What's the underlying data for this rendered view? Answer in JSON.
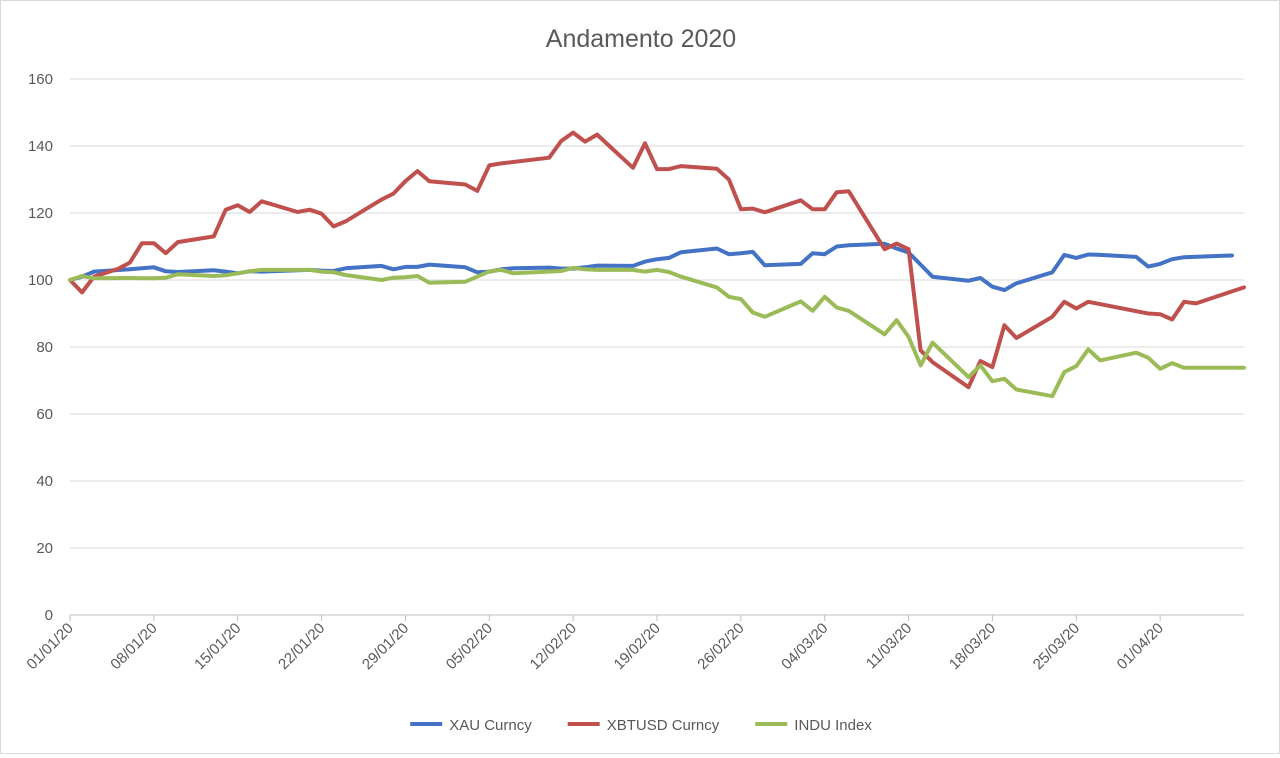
{
  "chart_data": {
    "type": "line",
    "title": "Andamento 2020",
    "xlabel": "",
    "ylabel": "",
    "ylim": [
      0,
      160
    ],
    "yticks": [
      0,
      20,
      40,
      60,
      80,
      100,
      120,
      140,
      160
    ],
    "xlim": [
      "01/01/20",
      "08/04/20"
    ],
    "xticks": [
      "01/01/20",
      "08/01/20",
      "15/01/20",
      "22/01/20",
      "29/01/20",
      "05/02/20",
      "12/02/20",
      "19/02/20",
      "26/02/20",
      "04/03/20",
      "11/03/20",
      "18/03/20",
      "25/03/20",
      "01/04/20"
    ],
    "grid": "horizontal",
    "legend": "bottom",
    "series": [
      {
        "name": "XAU Curncy",
        "color": "#4472c4",
        "points": [
          [
            "01/01/20",
            100
          ],
          [
            "02/01/20",
            101
          ],
          [
            "03/01/20",
            102.5
          ],
          [
            "06/01/20",
            103.2
          ],
          [
            "07/01/20",
            103.5
          ],
          [
            "08/01/20",
            103.8
          ],
          [
            "09/01/20",
            102.6
          ],
          [
            "10/01/20",
            102.4
          ],
          [
            "13/01/20",
            102.9
          ],
          [
            "14/01/20",
            102.5
          ],
          [
            "15/01/20",
            102.0
          ],
          [
            "16/01/20",
            102.6
          ],
          [
            "17/01/20",
            102.5
          ],
          [
            "20/01/20",
            102.9
          ],
          [
            "21/01/20",
            103.0
          ],
          [
            "22/01/20",
            102.8
          ],
          [
            "23/01/20",
            102.7
          ],
          [
            "24/01/20",
            103.5
          ],
          [
            "27/01/20",
            104.2
          ],
          [
            "28/01/20",
            103.2
          ],
          [
            "29/01/20",
            103.9
          ],
          [
            "30/01/20",
            103.9
          ],
          [
            "31/01/20",
            104.6
          ],
          [
            "03/02/20",
            103.8
          ],
          [
            "04/02/20",
            102.3
          ],
          [
            "05/02/20",
            102.5
          ],
          [
            "06/02/20",
            103.2
          ],
          [
            "07/02/20",
            103.5
          ],
          [
            "10/02/20",
            103.7
          ],
          [
            "11/02/20",
            103.4
          ],
          [
            "12/02/20",
            103.4
          ],
          [
            "13/02/20",
            103.8
          ],
          [
            "14/02/20",
            104.3
          ],
          [
            "17/02/20",
            104.2
          ],
          [
            "18/02/20",
            105.5
          ],
          [
            "19/02/20",
            106.2
          ],
          [
            "20/02/20",
            106.6
          ],
          [
            "21/02/20",
            108.3
          ],
          [
            "24/02/20",
            109.4
          ],
          [
            "25/02/20",
            107.7
          ],
          [
            "26/02/20",
            108.0
          ],
          [
            "27/02/20",
            108.4
          ],
          [
            "28/02/20",
            104.4
          ],
          [
            "02/03/20",
            104.8
          ],
          [
            "03/03/20",
            108.0
          ],
          [
            "04/03/20",
            107.7
          ],
          [
            "05/03/20",
            110.0
          ],
          [
            "06/03/20",
            110.4
          ],
          [
            "09/03/20",
            110.8
          ],
          [
            "10/03/20",
            109.4
          ],
          [
            "11/03/20",
            108.2
          ],
          [
            "12/03/20",
            104.6
          ],
          [
            "13/03/20",
            101.0
          ],
          [
            "16/03/20",
            99.8
          ],
          [
            "17/03/20",
            100.6
          ],
          [
            "18/03/20",
            98.0
          ],
          [
            "19/03/20",
            97.0
          ],
          [
            "20/03/20",
            99.0
          ],
          [
            "23/03/20",
            102.3
          ],
          [
            "24/03/20",
            107.5
          ],
          [
            "25/03/20",
            106.6
          ],
          [
            "26/03/20",
            107.6
          ],
          [
            "27/03/20",
            107.5
          ],
          [
            "30/03/20",
            106.9
          ],
          [
            "31/03/20",
            104.0
          ],
          [
            "01/04/20",
            104.8
          ],
          [
            "02/04/20",
            106.2
          ],
          [
            "03/04/20",
            106.8
          ],
          [
            "06/04/20",
            107.2
          ],
          [
            "07/04/20",
            107.3
          ]
        ]
      },
      {
        "name": "XBTUSD Curncy",
        "color": "#c0504d",
        "points": [
          [
            "01/01/20",
            100
          ],
          [
            "02/01/20",
            96.3
          ],
          [
            "03/01/20",
            101
          ],
          [
            "05/01/20",
            103.3
          ],
          [
            "06/01/20",
            105.2
          ],
          [
            "07/01/20",
            111.0
          ],
          [
            "08/01/20",
            111.0
          ],
          [
            "09/01/20",
            108.0
          ],
          [
            "10/01/20",
            111.3
          ],
          [
            "13/01/20",
            113.0
          ],
          [
            "14/01/20",
            121.0
          ],
          [
            "15/01/20",
            122.3
          ],
          [
            "16/01/20",
            120.3
          ],
          [
            "17/01/20",
            123.5
          ],
          [
            "20/01/20",
            120.3
          ],
          [
            "21/01/20",
            121.0
          ],
          [
            "22/01/20",
            119.8
          ],
          [
            "23/01/20",
            116.0
          ],
          [
            "24/01/20",
            117.5
          ],
          [
            "27/01/20",
            124.0
          ],
          [
            "28/01/20",
            125.8
          ],
          [
            "29/01/20",
            129.5
          ],
          [
            "30/01/20",
            132.5
          ],
          [
            "31/01/20",
            129.5
          ],
          [
            "03/02/20",
            128.5
          ],
          [
            "04/02/20",
            126.6
          ],
          [
            "05/02/20",
            134.2
          ],
          [
            "06/02/20",
            134.8
          ],
          [
            "10/02/20",
            136.5
          ],
          [
            "11/02/20",
            141.5
          ],
          [
            "12/02/20",
            144.0
          ],
          [
            "13/02/20",
            141.3
          ],
          [
            "14/02/20",
            143.4
          ],
          [
            "17/02/20",
            133.5
          ],
          [
            "18/02/20",
            140.8
          ],
          [
            "19/02/20",
            133.1
          ],
          [
            "20/02/20",
            133.1
          ],
          [
            "21/02/20",
            134.0
          ],
          [
            "24/02/20",
            133.2
          ],
          [
            "25/02/20",
            130.0
          ],
          [
            "26/02/20",
            121.1
          ],
          [
            "27/02/20",
            121.3
          ],
          [
            "28/02/20",
            120.2
          ],
          [
            "02/03/20",
            123.8
          ],
          [
            "03/03/20",
            121.1
          ],
          [
            "04/03/20",
            121.1
          ],
          [
            "05/03/20",
            126.2
          ],
          [
            "06/03/20",
            126.5
          ],
          [
            "09/03/20",
            109.2
          ],
          [
            "10/03/20",
            110.9
          ],
          [
            "11/03/20",
            109.2
          ],
          [
            "12/03/20",
            79.0
          ],
          [
            "13/03/20",
            75.5
          ],
          [
            "16/03/20",
            68.0
          ],
          [
            "17/03/20",
            75.8
          ],
          [
            "18/03/20",
            74.0
          ],
          [
            "19/03/20",
            86.5
          ],
          [
            "20/03/20",
            82.7
          ],
          [
            "23/03/20",
            89.0
          ],
          [
            "24/03/20",
            93.5
          ],
          [
            "25/03/20",
            91.5
          ],
          [
            "26/03/20",
            93.5
          ],
          [
            "31/03/20",
            90.0
          ],
          [
            "01/04/20",
            89.8
          ],
          [
            "02/04/20",
            88.2
          ],
          [
            "03/04/20",
            93.5
          ],
          [
            "04/04/20",
            93.0
          ],
          [
            "08/04/20",
            97.8
          ]
        ]
      },
      {
        "name": "INDU Index",
        "color": "#9bbb59",
        "points": [
          [
            "01/01/20",
            100
          ],
          [
            "02/01/20",
            101.2
          ],
          [
            "03/01/20",
            100.5
          ],
          [
            "06/01/20",
            100.6
          ],
          [
            "07/01/20",
            100.5
          ],
          [
            "08/01/20",
            100.5
          ],
          [
            "09/01/20",
            100.7
          ],
          [
            "10/01/20",
            101.7
          ],
          [
            "13/01/20",
            101.2
          ],
          [
            "14/01/20",
            101.4
          ],
          [
            "15/01/20",
            102.0
          ],
          [
            "16/01/20",
            102.6
          ],
          [
            "17/01/20",
            103.0
          ],
          [
            "20/01/20",
            103.0
          ],
          [
            "21/01/20",
            103.0
          ],
          [
            "22/01/20",
            102.5
          ],
          [
            "23/01/20",
            102.3
          ],
          [
            "24/01/20",
            101.5
          ],
          [
            "27/01/20",
            100.0
          ],
          [
            "28/01/20",
            100.7
          ],
          [
            "29/01/20",
            100.8
          ],
          [
            "30/01/20",
            101.2
          ],
          [
            "31/01/20",
            99.2
          ],
          [
            "03/02/20",
            99.5
          ],
          [
            "04/02/20",
            101.0
          ],
          [
            "05/02/20",
            102.6
          ],
          [
            "06/02/20",
            103.0
          ],
          [
            "07/02/20",
            102.0
          ],
          [
            "10/02/20",
            102.5
          ],
          [
            "11/02/20",
            102.7
          ],
          [
            "12/02/20",
            103.6
          ],
          [
            "13/02/20",
            103.2
          ],
          [
            "14/02/20",
            103.0
          ],
          [
            "17/02/20",
            103.0
          ],
          [
            "18/02/20",
            102.5
          ],
          [
            "19/02/20",
            103.0
          ],
          [
            "20/02/20",
            102.4
          ],
          [
            "21/02/20",
            101.0
          ],
          [
            "24/02/20",
            97.8
          ],
          [
            "25/02/20",
            95.0
          ],
          [
            "26/02/20",
            94.3
          ],
          [
            "27/02/20",
            90.3
          ],
          [
            "28/02/20",
            89.0
          ],
          [
            "02/03/20",
            93.6
          ],
          [
            "03/03/20",
            90.8
          ],
          [
            "04/03/20",
            95.0
          ],
          [
            "05/03/20",
            91.8
          ],
          [
            "06/03/20",
            90.8
          ],
          [
            "09/03/20",
            83.8
          ],
          [
            "10/03/20",
            88.0
          ],
          [
            "11/03/20",
            83.0
          ],
          [
            "12/03/20",
            74.5
          ],
          [
            "13/03/20",
            81.3
          ],
          [
            "16/03/20",
            71.0
          ],
          [
            "17/03/20",
            74.5
          ],
          [
            "18/03/20",
            69.8
          ],
          [
            "19/03/20",
            70.5
          ],
          [
            "20/03/20",
            67.3
          ],
          [
            "23/03/20",
            65.3
          ],
          [
            "24/03/20",
            72.5
          ],
          [
            "25/03/20",
            74.3
          ],
          [
            "26/03/20",
            79.3
          ],
          [
            "27/03/20",
            76.0
          ],
          [
            "30/03/20",
            78.3
          ],
          [
            "31/03/20",
            76.8
          ],
          [
            "01/04/20",
            73.5
          ],
          [
            "02/04/20",
            75.2
          ],
          [
            "03/04/20",
            73.8
          ],
          [
            "06/04/20",
            73.8
          ],
          [
            "07/04/20",
            73.8
          ],
          [
            "08/04/20",
            73.8
          ]
        ]
      }
    ]
  }
}
